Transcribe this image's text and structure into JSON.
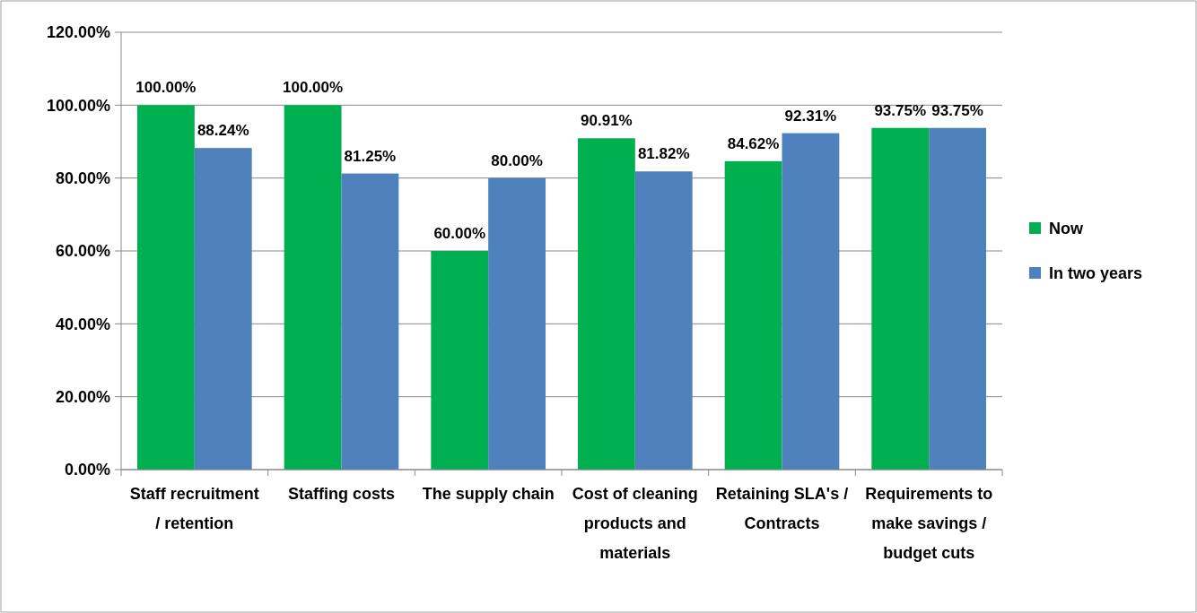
{
  "chart_data": {
    "type": "bar",
    "categories": [
      "Staff recruitment / retention",
      "Staffing costs",
      "The supply chain",
      "Cost of cleaning products and materials",
      "Retaining SLA's / Contracts",
      "Requirements to make savings / budget cuts"
    ],
    "series": [
      {
        "name": "Now",
        "color": "#00b050",
        "values": [
          100,
          100,
          60,
          90.91,
          84.62,
          93.75
        ],
        "value_labels": [
          "100.00%",
          "100.00%",
          "60.00%",
          "90.91%",
          "84.62%",
          "93.75%"
        ]
      },
      {
        "name": "In two years",
        "color": "#4f81bd",
        "values": [
          88.24,
          81.25,
          80,
          81.82,
          92.31,
          93.75
        ],
        "value_labels": [
          "88.24%",
          "81.25%",
          "80.00%",
          "81.82%",
          "92.31%",
          "93.75%"
        ]
      }
    ],
    "ylim": [
      0,
      120
    ],
    "yticks": [
      {
        "value": 0,
        "label": "0.00%"
      },
      {
        "value": 20,
        "label": "20.00%"
      },
      {
        "value": 40,
        "label": "40.00%"
      },
      {
        "value": 60,
        "label": "60.00%"
      },
      {
        "value": 80,
        "label": "80.00%"
      },
      {
        "value": 100,
        "label": "100.00%"
      },
      {
        "value": 120,
        "label": "120.00%"
      }
    ],
    "grid": "y",
    "legend": "right"
  }
}
